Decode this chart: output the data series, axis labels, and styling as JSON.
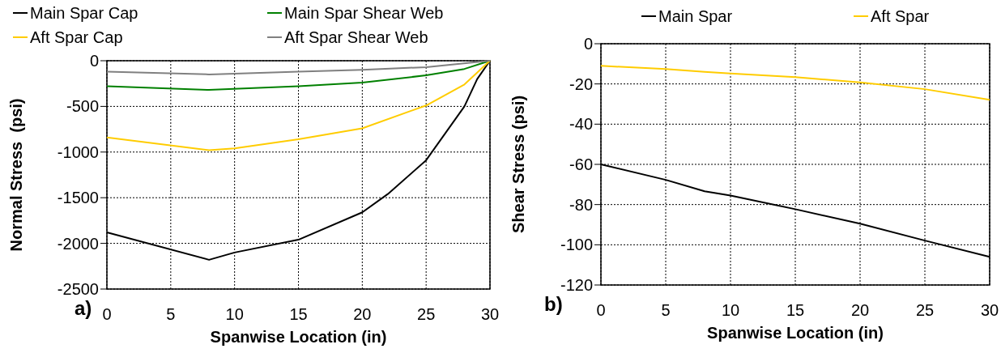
{
  "chart_data": [
    {
      "type": "line",
      "xlabel": "Spanwise Location (in)",
      "ylabel": "Normal Stress  (psi)",
      "annotations": [
        "a)"
      ],
      "xlim": [
        0,
        30
      ],
      "xticks": [
        0,
        5,
        10,
        15,
        20,
        25,
        30
      ],
      "ylim": [
        -2500,
        0
      ],
      "yticks": [
        -2500,
        -2000,
        -1500,
        -1000,
        -500,
        0
      ],
      "grid": true,
      "legend": "top",
      "line_style": "solid",
      "marker": "none",
      "series": [
        {
          "name": "Main Spar Cap",
          "color": "#000000",
          "x": [
            0,
            8,
            10,
            15,
            20,
            22,
            25,
            28,
            29,
            30
          ],
          "values": [
            -1880,
            -2180,
            -2100,
            -1960,
            -1660,
            -1460,
            -1090,
            -500,
            -200,
            0
          ]
        },
        {
          "name": "Main Spar Shear Web",
          "color": "#008000",
          "x": [
            0,
            8,
            15,
            20,
            25,
            28,
            30
          ],
          "values": [
            -280,
            -320,
            -280,
            -240,
            -160,
            -90,
            0
          ]
        },
        {
          "name": "Aft Spar Cap",
          "color": "#ffcc00",
          "x": [
            0,
            8,
            10,
            15,
            20,
            25,
            28,
            30
          ],
          "values": [
            -840,
            -980,
            -960,
            -860,
            -740,
            -490,
            -260,
            0
          ]
        },
        {
          "name": "Aft Spar Shear Web",
          "color": "#808080",
          "x": [
            0,
            8,
            15,
            20,
            25,
            30
          ],
          "values": [
            -120,
            -150,
            -120,
            -100,
            -70,
            0
          ]
        }
      ]
    },
    {
      "type": "line",
      "xlabel": "Spanwise Location (in)",
      "ylabel": "Shear Stress (psi)",
      "annotations": [
        "b)"
      ],
      "xlim": [
        0,
        30
      ],
      "xticks": [
        0,
        5,
        10,
        15,
        20,
        25,
        30
      ],
      "ylim": [
        -120,
        0
      ],
      "yticks": [
        -120,
        -100,
        -80,
        -60,
        -40,
        -20,
        0
      ],
      "grid": true,
      "legend": "top",
      "line_style": "solid",
      "marker": "none",
      "series": [
        {
          "name": "Main Spar",
          "color": "#000000",
          "x": [
            0,
            5,
            8,
            10,
            15,
            20,
            25,
            30
          ],
          "values": [
            -60,
            -67.7,
            -73.4,
            -75.5,
            -82.3,
            -89.5,
            -97.9,
            -106
          ]
        },
        {
          "name": "Aft Spar",
          "color": "#ffcc00",
          "x": [
            0,
            5,
            8,
            10,
            15,
            20,
            25,
            30
          ],
          "values": [
            -11,
            -12.6,
            -14,
            -14.8,
            -16.6,
            -19.2,
            -22.6,
            -27.9
          ]
        }
      ]
    }
  ]
}
